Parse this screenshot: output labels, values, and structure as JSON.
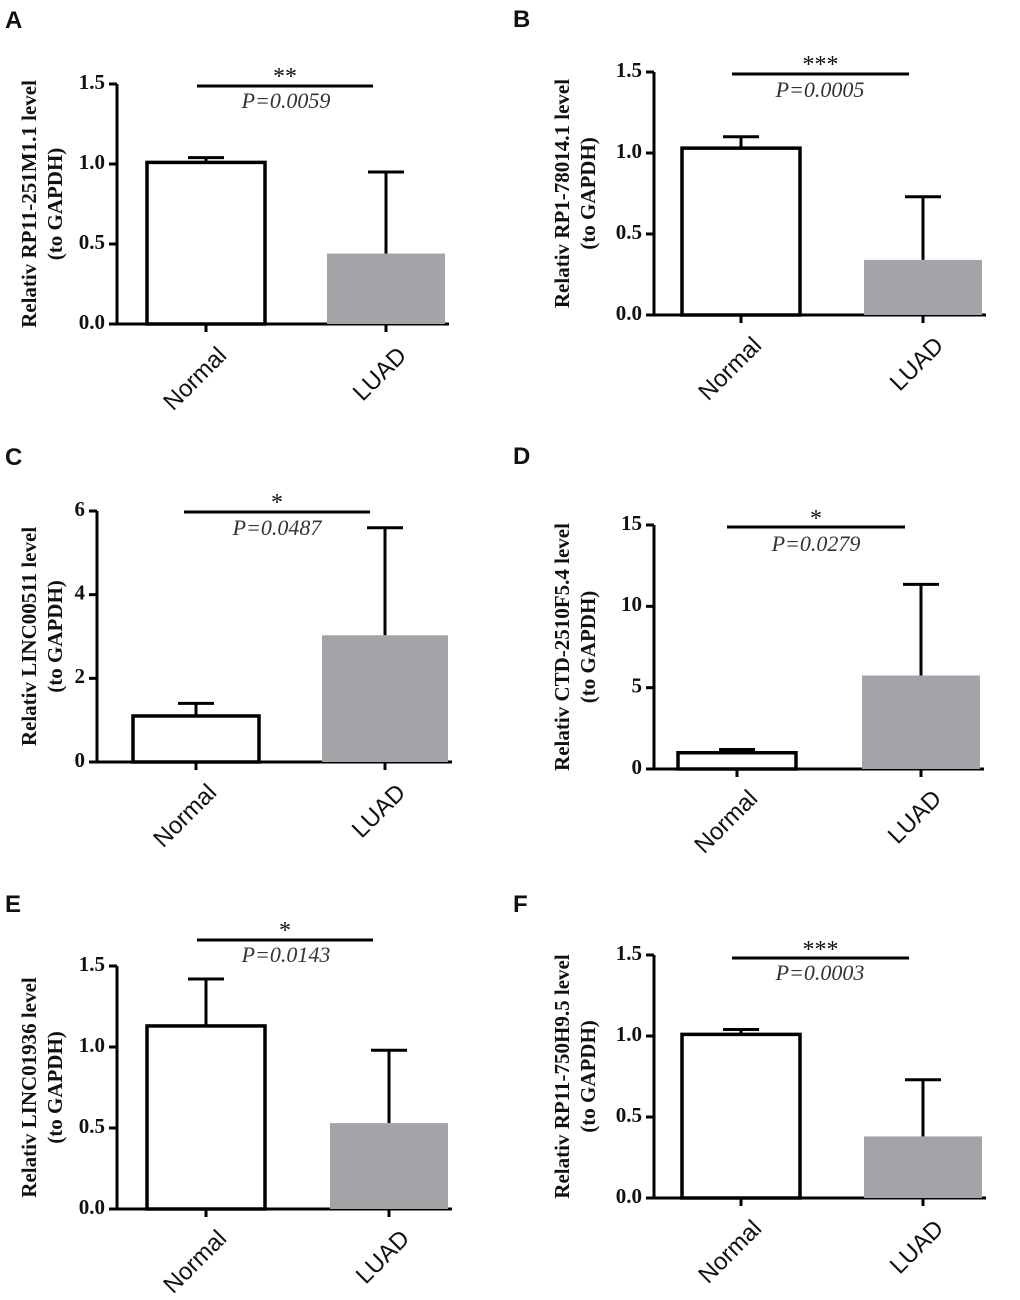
{
  "chart_data": [
    {
      "panel": "A",
      "type": "bar",
      "title": "",
      "ylabel_line1": "Relativ RP11-251M1.1 level",
      "ylabel_line2": "(to GAPDH)",
      "categories": [
        "Normal",
        "LUAD"
      ],
      "values": [
        1.01,
        0.44
      ],
      "errors": [
        0.03,
        0.51
      ],
      "ylim": [
        0,
        1.5
      ],
      "yticks": [
        0,
        0.5,
        1.0,
        1.5
      ],
      "ytick_labels": [
        "0.0",
        "0.5",
        "1.0",
        "1.5"
      ],
      "significance": "**",
      "p_value": "P=0.0059",
      "colors": [
        "#ffffff",
        "#a4a4a8"
      ]
    },
    {
      "panel": "B",
      "type": "bar",
      "title": "",
      "ylabel_line1": "Relativ RP1-78014.1 level",
      "ylabel_line2": "(to GAPDH)",
      "categories": [
        "Normal",
        "LUAD"
      ],
      "values": [
        1.03,
        0.34
      ],
      "errors": [
        0.07,
        0.39
      ],
      "ylim": [
        0,
        1.5
      ],
      "yticks": [
        0,
        0.5,
        1.0,
        1.5
      ],
      "ytick_labels": [
        "0.0",
        "0.5",
        "1.0",
        "1.5"
      ],
      "significance": "***",
      "p_value": "P=0.0005",
      "colors": [
        "#ffffff",
        "#a4a4a8"
      ]
    },
    {
      "panel": "C",
      "type": "bar",
      "title": "",
      "ylabel_line1": "Relativ LINC00511 level",
      "ylabel_line2": "(to GAPDH)",
      "categories": [
        "Normal",
        "LUAD"
      ],
      "values": [
        1.1,
        3.03
      ],
      "errors": [
        0.3,
        2.57
      ],
      "ylim": [
        0,
        6
      ],
      "yticks": [
        0,
        2,
        4,
        6
      ],
      "ytick_labels": [
        "0",
        "2",
        "4",
        "6"
      ],
      "significance": "*",
      "p_value": "P=0.0487",
      "colors": [
        "#ffffff",
        "#a4a4a8"
      ]
    },
    {
      "panel": "D",
      "type": "bar",
      "title": "",
      "ylabel_line1": "Relativ CTD-2510F5.4 level",
      "ylabel_line2": "(to GAPDH)",
      "categories": [
        "Normal",
        "LUAD"
      ],
      "values": [
        1.0,
        5.75
      ],
      "errors": [
        0.2,
        5.6
      ],
      "ylim": [
        0,
        15
      ],
      "yticks": [
        0,
        5,
        10,
        15
      ],
      "ytick_labels": [
        "0",
        "5",
        "10",
        "15"
      ],
      "significance": "*",
      "p_value": "P=0.0279",
      "colors": [
        "#ffffff",
        "#a4a4a8"
      ]
    },
    {
      "panel": "E",
      "type": "bar",
      "title": "",
      "ylabel_line1": "Relativ LINC01936 level",
      "ylabel_line2": "(to GAPDH)",
      "categories": [
        "Normal",
        "LUAD"
      ],
      "values": [
        1.13,
        0.53
      ],
      "errors": [
        0.29,
        0.45
      ],
      "ylim": [
        0,
        1.5
      ],
      "yticks": [
        0,
        0.5,
        1.0,
        1.5
      ],
      "ytick_labels": [
        "0.0",
        "0.5",
        "1.0",
        "1.5"
      ],
      "significance": "*",
      "p_value": "P=0.0143",
      "colors": [
        "#ffffff",
        "#a4a4a8"
      ]
    },
    {
      "panel": "F",
      "type": "bar",
      "title": "",
      "ylabel_line1": "Relativ RP11-750H9.5 level",
      "ylabel_line2": "(to GAPDH)",
      "categories": [
        "Normal",
        "LUAD"
      ],
      "values": [
        1.01,
        0.38
      ],
      "errors": [
        0.03,
        0.35
      ],
      "ylim": [
        0,
        1.5
      ],
      "yticks": [
        0,
        0.5,
        1.0,
        1.5
      ],
      "ytick_labels": [
        "0.0",
        "0.5",
        "1.0",
        "1.5"
      ],
      "significance": "***",
      "p_value": "P=0.0003",
      "colors": [
        "#ffffff",
        "#a4a4a8"
      ]
    }
  ]
}
